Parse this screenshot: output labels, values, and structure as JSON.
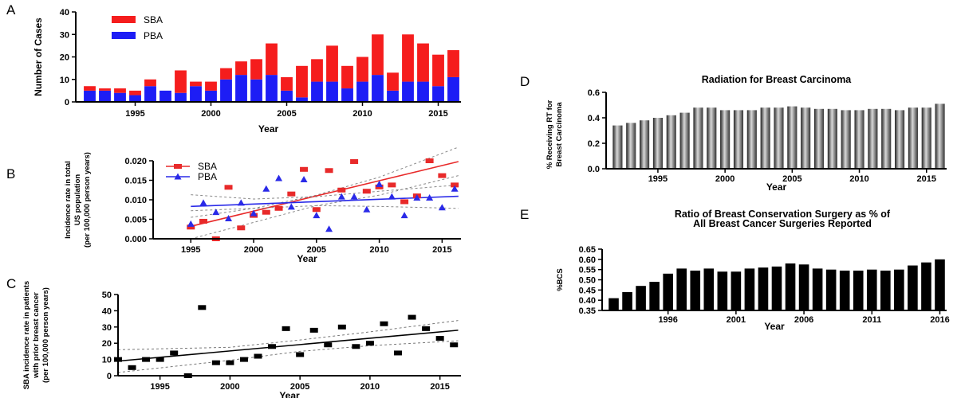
{
  "figure": {
    "panel_labels": [
      "A",
      "B",
      "C",
      "D",
      "E"
    ]
  },
  "chart_data": [
    {
      "panel": "A",
      "type": "bar",
      "stacked": true,
      "xlabel": "Year",
      "ylabel": "Number of Cases",
      "ylim": [
        0,
        40
      ],
      "yticks": [
        "0",
        "10",
        "20",
        "30",
        "40"
      ],
      "xticks": [
        "1995",
        "2000",
        "2005",
        "2010",
        "2015"
      ],
      "categories": [
        1992,
        1993,
        1994,
        1995,
        1996,
        1997,
        1998,
        1999,
        2000,
        2001,
        2002,
        2003,
        2004,
        2005,
        2006,
        2007,
        2008,
        2009,
        2010,
        2011,
        2012,
        2013,
        2014,
        2015,
        2016
      ],
      "legend_position": "top-left",
      "series": [
        {
          "name": "PBA",
          "color": "#1d1df5",
          "values": [
            5,
            5,
            4,
            3,
            7,
            5,
            4,
            7,
            5,
            10,
            12,
            10,
            12,
            5,
            2,
            9,
            9,
            6,
            9,
            12,
            5,
            9,
            9,
            7,
            11
          ]
        },
        {
          "name": "SBA",
          "color": "#f51d1d",
          "values": [
            2,
            1,
            2,
            2,
            3,
            0,
            10,
            2,
            4,
            5,
            6,
            9,
            14,
            6,
            14,
            10,
            16,
            10,
            11,
            18,
            8,
            21,
            17,
            14,
            12
          ]
        }
      ]
    },
    {
      "panel": "B",
      "type": "scatter",
      "xlabel": "Year",
      "ylabel": [
        "Incidence rate in total",
        "US population",
        "(per 100,000 person years)"
      ],
      "xlim": [
        1992,
        2016.5
      ],
      "ylim": [
        0,
        0.02
      ],
      "yticks": [
        "0.000",
        "0.005",
        "0.010",
        "0.015",
        "0.020"
      ],
      "xticks": [
        "1995",
        "2000",
        "2005",
        "2010",
        "2015"
      ],
      "legend_position": "top-left",
      "series": [
        {
          "name": "SBA",
          "color": "#e82a2a",
          "marker": "square",
          "x": [
            1995,
            1996,
            1997,
            1998,
            1999,
            2000,
            2001,
            2002,
            2003,
            2004,
            2005,
            2006,
            2007,
            2008,
            2009,
            2010,
            2011,
            2012,
            2013,
            2014,
            2015,
            2016
          ],
          "y": [
            0.003,
            0.0045,
            0.0,
            0.0132,
            0.0028,
            0.006,
            0.0068,
            0.0078,
            0.0115,
            0.0178,
            0.0075,
            0.0175,
            0.0125,
            0.0198,
            0.0122,
            0.0133,
            0.0138,
            0.0095,
            0.011,
            0.02,
            0.0162,
            0.0138
          ],
          "fit": [
            [
              1995,
              0.0032
            ],
            [
              2016.3,
              0.0198
            ]
          ],
          "ci_upper": [
            [
              1995,
              0.0072
            ],
            [
              2000,
              0.0078
            ],
            [
              2005,
              0.0112
            ],
            [
              2010,
              0.0158
            ],
            [
              2016.3,
              0.0235
            ]
          ],
          "ci_lower": [
            [
              1995,
              0.0
            ],
            [
              2000,
              0.0042
            ],
            [
              2005,
              0.0085
            ],
            [
              2010,
              0.0112
            ],
            [
              2016.3,
              0.0162
            ]
          ]
        },
        {
          "name": "PBA",
          "color": "#2a2ae8",
          "marker": "triangle",
          "x": [
            1995,
            1996,
            1997,
            1998,
            1999,
            2000,
            2001,
            2002,
            2003,
            2004,
            2005,
            2006,
            2007,
            2008,
            2009,
            2010,
            2011,
            2012,
            2013,
            2014,
            2015,
            2016
          ],
          "y": [
            0.0038,
            0.0092,
            0.0068,
            0.0052,
            0.0092,
            0.0065,
            0.0128,
            0.0155,
            0.0082,
            0.0152,
            0.006,
            0.0025,
            0.0108,
            0.0108,
            0.0075,
            0.014,
            0.0108,
            0.006,
            0.0105,
            0.0105,
            0.008,
            0.0128
          ],
          "fit": [
            [
              1995,
              0.0083
            ],
            [
              2016.3,
              0.0109
            ]
          ],
          "ci_upper": [
            [
              1995,
              0.0113
            ],
            [
              2000,
              0.0102
            ],
            [
              2005,
              0.0108
            ],
            [
              2010,
              0.0122
            ],
            [
              2016.3,
              0.0138
            ]
          ],
          "ci_lower": [
            [
              1995,
              0.0055
            ],
            [
              2000,
              0.0078
            ],
            [
              2005,
              0.0085
            ],
            [
              2010,
              0.0083
            ],
            [
              2016.3,
              0.0078
            ]
          ]
        }
      ]
    },
    {
      "panel": "C",
      "type": "scatter",
      "xlabel": "Year",
      "ylabel": [
        "SBA incidence rate in patients",
        "with prior breast cancer",
        "(per 100,000 person years)"
      ],
      "xlim": [
        1992,
        2016.5
      ],
      "ylim": [
        0,
        50
      ],
      "yticks": [
        "0",
        "10",
        "20",
        "30",
        "40",
        "50"
      ],
      "xticks": [
        "1995",
        "2000",
        "2005",
        "2010",
        "2015"
      ],
      "series": [
        {
          "name": "",
          "color": "#000000",
          "marker": "square",
          "x": [
            1992,
            1993,
            1994,
            1995,
            1996,
            1997,
            1998,
            1999,
            2000,
            2001,
            2002,
            2003,
            2004,
            2005,
            2006,
            2007,
            2008,
            2009,
            2010,
            2011,
            2012,
            2013,
            2014,
            2015,
            2016
          ],
          "y": [
            10,
            5,
            10,
            10,
            14,
            0,
            42,
            8,
            8,
            10,
            12,
            18,
            29,
            13,
            28,
            19,
            30,
            18,
            20,
            32,
            14,
            36,
            29,
            23,
            19
          ],
          "fit": [
            [
              1992,
              9
            ],
            [
              2016.3,
              28
            ]
          ],
          "ci_upper": [
            [
              1992,
              16
            ],
            [
              2000,
              17.5
            ],
            [
              2005,
              22
            ],
            [
              2010,
              27
            ],
            [
              2016.3,
              34
            ]
          ],
          "ci_lower": [
            [
              1992,
              2
            ],
            [
              2000,
              9.5
            ],
            [
              2005,
              15
            ],
            [
              2010,
              18.5
            ],
            [
              2016.3,
              21.5
            ]
          ]
        }
      ]
    },
    {
      "panel": "D",
      "type": "bar",
      "title": "Radiation for Breast Carcinoma",
      "xlabel": "Year",
      "ylabel": [
        "% Receiving RT for",
        "Breast Carcinoma"
      ],
      "ylim": [
        0,
        0.6
      ],
      "yticks": [
        "0.0",
        "0.2",
        "0.4",
        "0.6"
      ],
      "xticks": [
        "1995",
        "2000",
        "2005",
        "2010",
        "2015"
      ],
      "categories": [
        1992,
        1993,
        1994,
        1995,
        1996,
        1997,
        1998,
        1999,
        2000,
        2001,
        2002,
        2003,
        2004,
        2005,
        2006,
        2007,
        2008,
        2009,
        2010,
        2011,
        2012,
        2013,
        2014,
        2015,
        2016
      ],
      "values": [
        0.34,
        0.36,
        0.38,
        0.4,
        0.42,
        0.44,
        0.48,
        0.48,
        0.46,
        0.46,
        0.46,
        0.48,
        0.48,
        0.49,
        0.48,
        0.47,
        0.47,
        0.46,
        0.46,
        0.47,
        0.47,
        0.46,
        0.48,
        0.48,
        0.51
      ]
    },
    {
      "panel": "E",
      "type": "bar",
      "title": [
        "Ratio of Breast Conservation Surgery as % of",
        "All Breast Cancer Surgeries Reported"
      ],
      "xlabel": "Year",
      "ylabel": "%BCS",
      "ylim": [
        0.35,
        0.65
      ],
      "yticks": [
        "0.35",
        "0.40",
        "0.45",
        "0.50",
        "0.55",
        "0.60",
        "0.65"
      ],
      "xticks": [
        "1996",
        "2001",
        "2006",
        "2011",
        "2016"
      ],
      "categories": [
        1992,
        1993,
        1994,
        1995,
        1996,
        1997,
        1998,
        1999,
        2000,
        2001,
        2002,
        2003,
        2004,
        2005,
        2006,
        2007,
        2008,
        2009,
        2010,
        2011,
        2012,
        2013,
        2014,
        2015,
        2016
      ],
      "values": [
        0.41,
        0.44,
        0.47,
        0.49,
        0.53,
        0.555,
        0.545,
        0.555,
        0.54,
        0.54,
        0.555,
        0.56,
        0.565,
        0.58,
        0.575,
        0.555,
        0.55,
        0.545,
        0.545,
        0.55,
        0.545,
        0.55,
        0.57,
        0.585,
        0.6
      ]
    }
  ]
}
